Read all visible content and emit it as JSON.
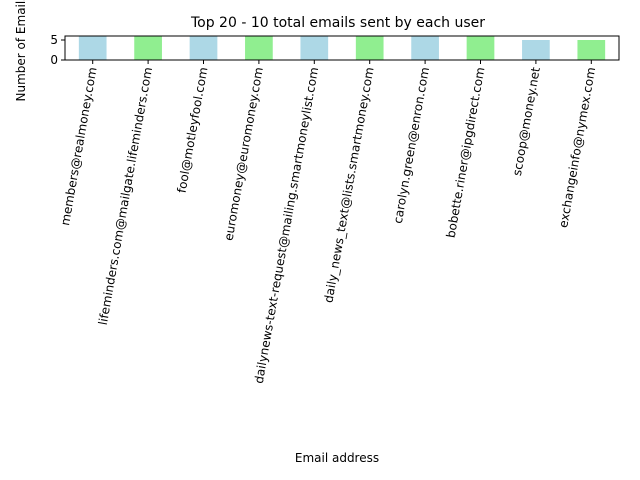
{
  "chart_data": {
    "type": "bar",
    "title": "Top 20 - 10 total emails sent by each user",
    "xlabel": "Email address",
    "ylabel": "Number of Emails",
    "ylim": [
      0,
      6
    ],
    "yticks": [
      0,
      5
    ],
    "grid": false,
    "legend": "none",
    "bar_colors": [
      "#add8e6",
      "#90ee90"
    ],
    "categories": [
      "members@realmoney.com",
      "lifeminders.com@mailgate.lifeminders.com",
      "fool@motleyfool.com",
      "euromoney@euromoney.com",
      "dailynews-text-request@mailing.smartmoneylist.com",
      "daily_news_text@lists.smartmoney.com",
      "carolyn.green@enron.com",
      "bobette.riner@ipgdirect.com",
      "scoop@money.net",
      "exchangeinfo@nymex.com"
    ],
    "values": [
      6,
      6,
      6,
      6,
      6,
      6,
      6,
      6,
      5,
      5
    ]
  }
}
